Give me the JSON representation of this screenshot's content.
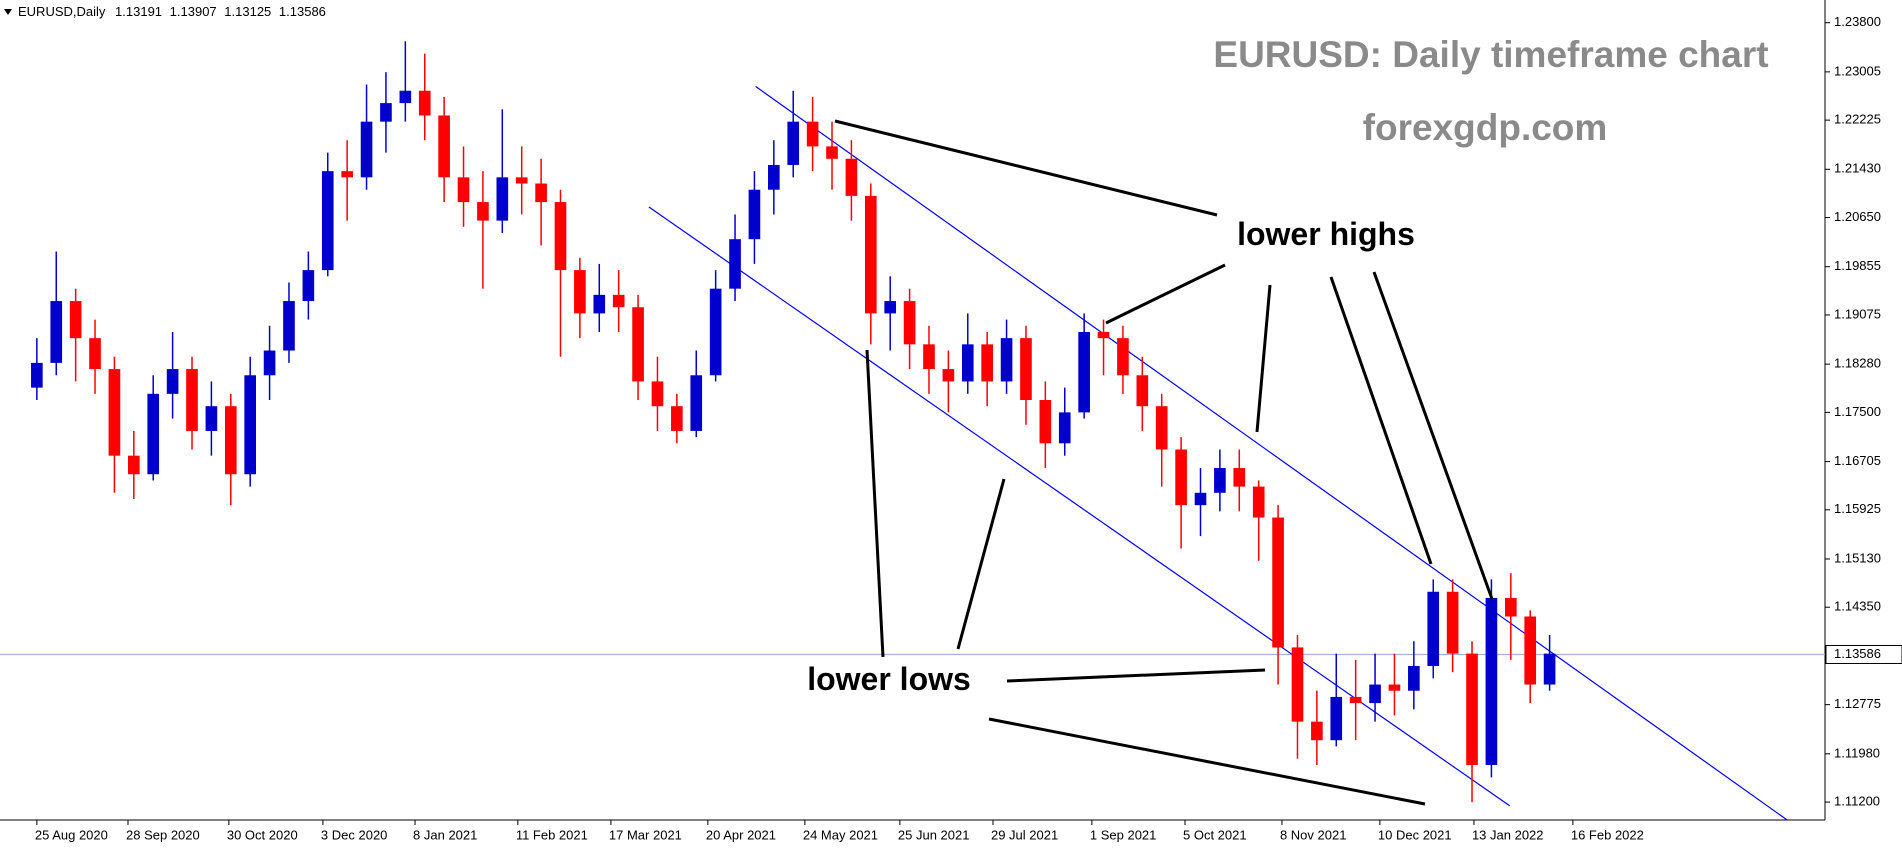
{
  "chart_data": {
    "type": "candlestick",
    "symbol": "EURUSD,Daily",
    "header_values": [
      1.13191,
      1.13907,
      1.13125,
      1.13586
    ],
    "title": "EURUSD: Daily timeframe chart",
    "subtitle": "forexgdp.com",
    "annotations": [
      "lower highs",
      "lower lows"
    ],
    "up_color": "#0000cc",
    "down_color": "#ff0000",
    "channel_color": "#0000ff",
    "price_line_color": "#9fb3d9",
    "current_price": 1.13586,
    "xlim": [
      -1.9,
      92.2
    ],
    "ylim": [
      1.1091,
      1.2407
    ],
    "xticks": [
      {
        "value": 0,
        "label": "25 Aug 2020"
      },
      {
        "value": 4.7,
        "label": "28 Sep 2020"
      },
      {
        "value": 9.9,
        "label": "30 Oct 2020"
      },
      {
        "value": 14.75,
        "label": "3 Dec 2020"
      },
      {
        "value": 19.5,
        "label": "8 Jan 2021"
      },
      {
        "value": 24.8,
        "label": "11 Feb 2021"
      },
      {
        "value": 29.6,
        "label": "17 Mar 2021"
      },
      {
        "value": 34.6,
        "label": "20 Apr 2021"
      },
      {
        "value": 39.6,
        "label": "24 May 2021"
      },
      {
        "value": 44.5,
        "label": "25 Jun 2021"
      },
      {
        "value": 49.3,
        "label": "29 Jul 2021"
      },
      {
        "value": 54.4,
        "label": "1 Sep 2021"
      },
      {
        "value": 59.2,
        "label": "5 Oct 2021"
      },
      {
        "value": 64.2,
        "label": "8 Nov 2021"
      },
      {
        "value": 69.25,
        "label": "10 Dec 2021"
      },
      {
        "value": 74.1,
        "label": "13 Jan 2022"
      },
      {
        "value": 79.2,
        "label": "16 Feb 2022"
      }
    ],
    "yticks": [
      {
        "value": 1.112,
        "label": "1.11200"
      },
      {
        "value": 1.1198,
        "label": "1.11980"
      },
      {
        "value": 1.12775,
        "label": "1.12775"
      },
      {
        "value": 1.1435,
        "label": "1.14350"
      },
      {
        "value": 1.1513,
        "label": "1.15130"
      },
      {
        "value": 1.15925,
        "label": "1.15925"
      },
      {
        "value": 1.16705,
        "label": "1.16705"
      },
      {
        "value": 1.175,
        "label": "1.17500"
      },
      {
        "value": 1.1828,
        "label": "1.18280"
      },
      {
        "value": 1.19075,
        "label": "1.19075"
      },
      {
        "value": 1.19855,
        "label": "1.19855"
      },
      {
        "value": 1.2065,
        "label": "1.20650"
      },
      {
        "value": 1.2143,
        "label": "1.21430"
      },
      {
        "value": 1.22225,
        "label": "1.22225"
      },
      {
        "value": 1.23005,
        "label": "1.23005"
      },
      {
        "value": 1.238,
        "label": "1.23800"
      }
    ],
    "channel": [
      {
        "x": [
          37.06,
          90.25
        ],
        "y": [
          1.2277,
          1.1091
        ]
      },
      {
        "x": [
          31.56,
          75.94
        ],
        "y": [
          1.2082,
          1.1114
        ]
      }
    ],
    "ohlc": [
      [
        1.179,
        1.187,
        1.177,
        1.183
      ],
      [
        1.183,
        1.201,
        1.181,
        1.193
      ],
      [
        1.193,
        1.195,
        1.18,
        1.187
      ],
      [
        1.187,
        1.19,
        1.178,
        1.182
      ],
      [
        1.182,
        1.184,
        1.162,
        1.168
      ],
      [
        1.168,
        1.172,
        1.161,
        1.165
      ],
      [
        1.165,
        1.181,
        1.164,
        1.178
      ],
      [
        1.178,
        1.188,
        1.174,
        1.182
      ],
      [
        1.182,
        1.184,
        1.169,
        1.172
      ],
      [
        1.172,
        1.18,
        1.168,
        1.176
      ],
      [
        1.176,
        1.178,
        1.16,
        1.165
      ],
      [
        1.165,
        1.184,
        1.163,
        1.181
      ],
      [
        1.181,
        1.189,
        1.177,
        1.185
      ],
      [
        1.185,
        1.196,
        1.183,
        1.193
      ],
      [
        1.193,
        1.201,
        1.19,
        1.198
      ],
      [
        1.198,
        1.217,
        1.197,
        1.214
      ],
      [
        1.214,
        1.219,
        1.206,
        1.213
      ],
      [
        1.213,
        1.228,
        1.211,
        1.222
      ],
      [
        1.222,
        1.23,
        1.217,
        1.225
      ],
      [
        1.225,
        1.235,
        1.222,
        1.227
      ],
      [
        1.227,
        1.233,
        1.219,
        1.223
      ],
      [
        1.223,
        1.226,
        1.209,
        1.213
      ],
      [
        1.213,
        1.218,
        1.205,
        1.209
      ],
      [
        1.209,
        1.214,
        1.195,
        1.206
      ],
      [
        1.206,
        1.224,
        1.204,
        1.213
      ],
      [
        1.213,
        1.218,
        1.207,
        1.212
      ],
      [
        1.212,
        1.216,
        1.202,
        1.209
      ],
      [
        1.209,
        1.211,
        1.184,
        1.198
      ],
      [
        1.198,
        1.2,
        1.187,
        1.191
      ],
      [
        1.191,
        1.199,
        1.188,
        1.194
      ],
      [
        1.194,
        1.198,
        1.188,
        1.192
      ],
      [
        1.192,
        1.194,
        1.177,
        1.18
      ],
      [
        1.18,
        1.184,
        1.172,
        1.176
      ],
      [
        1.176,
        1.178,
        1.17,
        1.172
      ],
      [
        1.172,
        1.185,
        1.171,
        1.181
      ],
      [
        1.181,
        1.198,
        1.18,
        1.195
      ],
      [
        1.195,
        1.207,
        1.193,
        1.203
      ],
      [
        1.203,
        1.214,
        1.199,
        1.211
      ],
      [
        1.211,
        1.219,
        1.207,
        1.215
      ],
      [
        1.215,
        1.227,
        1.213,
        1.222
      ],
      [
        1.222,
        1.226,
        1.214,
        1.218
      ],
      [
        1.218,
        1.222,
        1.211,
        1.216
      ],
      [
        1.216,
        1.219,
        1.206,
        1.21
      ],
      [
        1.21,
        1.212,
        1.186,
        1.191
      ],
      [
        1.191,
        1.197,
        1.185,
        1.193
      ],
      [
        1.193,
        1.195,
        1.182,
        1.186
      ],
      [
        1.186,
        1.189,
        1.178,
        1.182
      ],
      [
        1.182,
        1.185,
        1.175,
        1.18
      ],
      [
        1.18,
        1.191,
        1.178,
        1.186
      ],
      [
        1.186,
        1.188,
        1.176,
        1.18
      ],
      [
        1.18,
        1.19,
        1.178,
        1.187
      ],
      [
        1.187,
        1.189,
        1.173,
        1.177
      ],
      [
        1.177,
        1.18,
        1.166,
        1.17
      ],
      [
        1.17,
        1.179,
        1.168,
        1.175
      ],
      [
        1.175,
        1.191,
        1.174,
        1.188
      ],
      [
        1.188,
        1.19,
        1.181,
        1.187
      ],
      [
        1.187,
        1.189,
        1.178,
        1.181
      ],
      [
        1.181,
        1.184,
        1.172,
        1.176
      ],
      [
        1.176,
        1.178,
        1.163,
        1.169
      ],
      [
        1.169,
        1.171,
        1.153,
        1.16
      ],
      [
        1.16,
        1.166,
        1.155,
        1.162
      ],
      [
        1.162,
        1.169,
        1.159,
        1.166
      ],
      [
        1.166,
        1.169,
        1.159,
        1.163
      ],
      [
        1.163,
        1.164,
        1.151,
        1.158
      ],
      [
        1.158,
        1.16,
        1.131,
        1.137
      ],
      [
        1.137,
        1.139,
        1.119,
        1.125
      ],
      [
        1.125,
        1.13,
        1.118,
        1.122
      ],
      [
        1.122,
        1.136,
        1.121,
        1.129
      ],
      [
        1.129,
        1.135,
        1.122,
        1.128
      ],
      [
        1.128,
        1.136,
        1.125,
        1.131
      ],
      [
        1.131,
        1.136,
        1.126,
        1.13
      ],
      [
        1.13,
        1.138,
        1.127,
        1.134
      ],
      [
        1.134,
        1.148,
        1.132,
        1.146
      ],
      [
        1.146,
        1.148,
        1.133,
        1.136
      ],
      [
        1.136,
        1.138,
        1.112,
        1.118
      ],
      [
        1.118,
        1.148,
        1.116,
        1.145
      ],
      [
        1.145,
        1.149,
        1.135,
        1.142
      ],
      [
        1.142,
        1.143,
        1.128,
        1.131
      ],
      [
        1.131,
        1.139,
        1.13,
        1.136
      ]
    ]
  }
}
